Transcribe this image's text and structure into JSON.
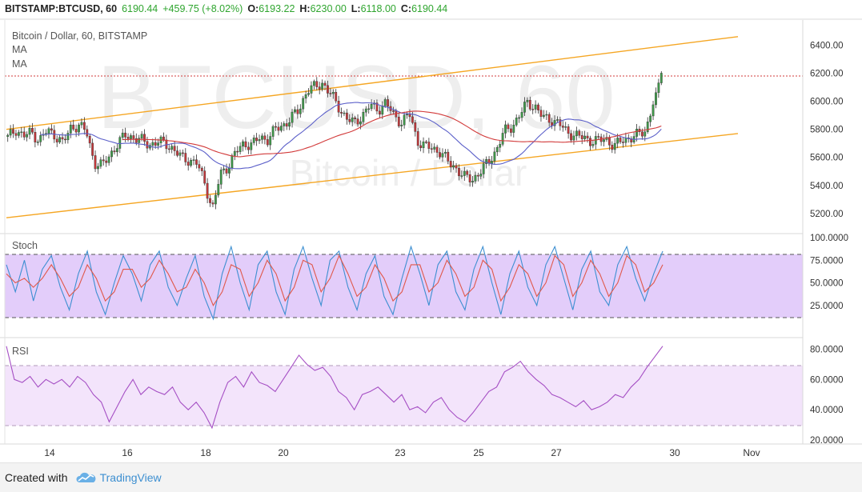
{
  "header": {
    "symbol": "BITSTAMP:BTCUSD, 60",
    "last": "6190.44",
    "change": "+459.75 (+8.02%)",
    "open_label": "O:",
    "open": "6193.22",
    "high_label": "H:",
    "high": "6230.00",
    "low_label": "L:",
    "low": "6118.00",
    "close_label": "C:",
    "close": "6190.44"
  },
  "legend": {
    "title": "Bitcoin / Dollar, 60, BITSTAMP",
    "ma1": "MA",
    "ma2": "MA"
  },
  "watermark": {
    "big": "BTCUSD, 60",
    "small": "Bitcoin / Dollar"
  },
  "stoch_label": "Stoch",
  "rsi_label": "RSI",
  "footer": {
    "created": "Created with",
    "brand": "TradingView"
  },
  "colors": {
    "up": "#3f9a4a",
    "down": "#c4383b",
    "ma_fast": "#5b5fc9",
    "ma_slow": "#d23a3a",
    "channel": "#f5a623",
    "stoch_k": "#3d8fd1",
    "stoch_d": "#e0584a",
    "stoch_band": "#e3cdfa",
    "rsi_line": "#a54fc4",
    "rsi_band": "#f3e4fb",
    "header_green": "#2fa52f"
  },
  "chart_data": [
    {
      "type": "candlestick",
      "title": "Bitcoin / Dollar, 60, BITSTAMP",
      "x_ticks": [
        "14",
        "16",
        "18",
        "20",
        "23",
        "25",
        "27",
        "30",
        "Nov"
      ],
      "y_ticks": [
        5200,
        5400,
        5600,
        5800,
        6000,
        6200,
        6400
      ],
      "ylim": [
        5080,
        6550
      ],
      "last_price": 6190.44,
      "close_series": [
        5740,
        5800,
        5750,
        5780,
        5720,
        5790,
        5760,
        5700,
        5810,
        5830,
        5780,
        5560,
        5540,
        5620,
        5700,
        5760,
        5740,
        5720,
        5690,
        5710,
        5700,
        5660,
        5600,
        5580,
        5560,
        5420,
        5230,
        5480,
        5540,
        5640,
        5700,
        5690,
        5740,
        5730,
        5800,
        5830,
        5880,
        5940,
        6080,
        6100,
        6130,
        6050,
        5960,
        5880,
        5840,
        5900,
        5970,
        5940,
        5990,
        5900,
        5850,
        5910,
        5720,
        5680,
        5660,
        5640,
        5560,
        5520,
        5460,
        5440,
        5500,
        5560,
        5650,
        5780,
        5820,
        5900,
        5990,
        5960,
        5880,
        5870,
        5840,
        5780,
        5760,
        5740,
        5720,
        5720,
        5730,
        5680,
        5720,
        5740,
        5760,
        5790,
        6000,
        6200
      ],
      "channel": {
        "upper": [
          [
            0,
            5800
          ],
          [
            1,
            6460
          ]
        ],
        "lower": [
          [
            0,
            5170
          ],
          [
            1,
            5770
          ]
        ]
      },
      "grid": false,
      "legend_position": "top-left"
    },
    {
      "type": "line",
      "title": "Stoch",
      "y_ticks": [
        25,
        50,
        75,
        100
      ],
      "ylim": [
        0,
        100
      ],
      "band": [
        20,
        80
      ],
      "series": [
        {
          "values": [
            70,
            40,
            75,
            30,
            65,
            80,
            45,
            20,
            60,
            85,
            40,
            15,
            50,
            80,
            60,
            30,
            70,
            85,
            45,
            25,
            55,
            80,
            35,
            10,
            60,
            90,
            50,
            20,
            70,
            85,
            40,
            15,
            65,
            90,
            55,
            25,
            75,
            85,
            45,
            20,
            60,
            80,
            35,
            15,
            55,
            90,
            60,
            25,
            70,
            85,
            40,
            20,
            65,
            90,
            50,
            15,
            60,
            85,
            45,
            25,
            70,
            90,
            55,
            20,
            65,
            85,
            40,
            25,
            70,
            90,
            55,
            30,
            60,
            85
          ]
        },
        {
          "values": [
            60,
            50,
            55,
            45,
            55,
            70,
            55,
            35,
            45,
            70,
            55,
            30,
            40,
            65,
            65,
            45,
            55,
            75,
            60,
            40,
            45,
            65,
            50,
            25,
            40,
            70,
            65,
            35,
            50,
            75,
            60,
            30,
            45,
            75,
            70,
            40,
            55,
            80,
            60,
            35,
            45,
            70,
            55,
            30,
            40,
            70,
            70,
            40,
            50,
            75,
            60,
            35,
            45,
            75,
            65,
            30,
            45,
            70,
            60,
            35,
            50,
            80,
            70,
            35,
            50,
            75,
            60,
            35,
            50,
            80,
            70,
            40,
            50,
            70
          ]
        }
      ]
    },
    {
      "type": "line",
      "title": "RSI",
      "y_ticks": [
        20,
        40,
        60,
        80
      ],
      "ylim": [
        20,
        85
      ],
      "band": [
        30,
        70
      ],
      "series": [
        {
          "values": [
            82,
            60,
            58,
            62,
            55,
            60,
            57,
            60,
            55,
            62,
            58,
            50,
            45,
            32,
            42,
            52,
            60,
            50,
            55,
            52,
            50,
            55,
            45,
            40,
            45,
            38,
            28,
            45,
            58,
            62,
            55,
            65,
            58,
            56,
            52,
            60,
            68,
            76,
            70,
            66,
            68,
            62,
            52,
            48,
            40,
            50,
            52,
            55,
            50,
            45,
            50,
            40,
            42,
            38,
            45,
            48,
            40,
            35,
            32,
            38,
            45,
            52,
            55,
            65,
            68,
            72,
            65,
            60,
            56,
            50,
            48,
            45,
            42,
            46,
            40,
            42,
            45,
            50,
            48,
            55,
            60,
            68,
            75,
            82
          ]
        }
      ]
    }
  ]
}
